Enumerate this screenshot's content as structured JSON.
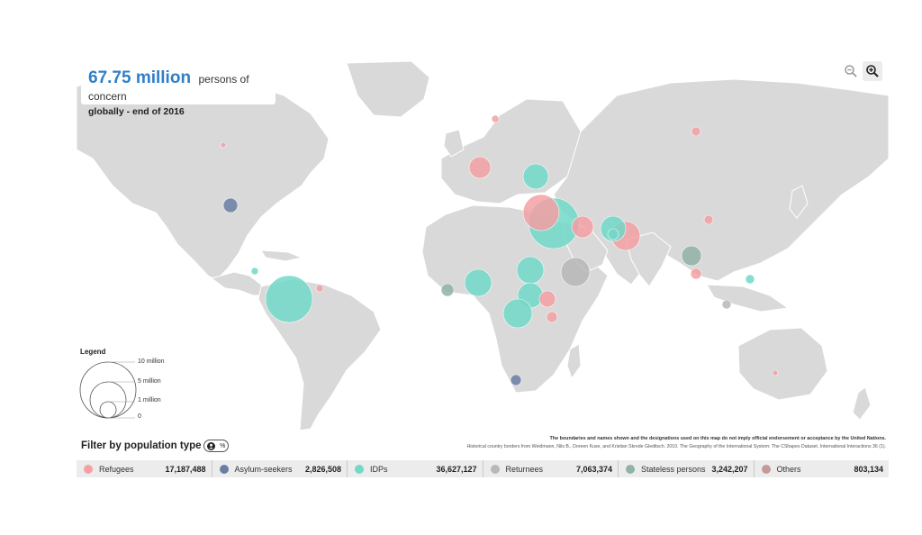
{
  "title": {
    "big": "67.75 million",
    "rest": "persons of concern",
    "sub": "globally - end of 2016"
  },
  "zoom": {
    "out_icon": "zoom-out-icon",
    "in_icon": "zoom-in-icon"
  },
  "legend": {
    "title": "Legend",
    "ticks": [
      "10 million",
      "5 million",
      "1 million",
      "0"
    ]
  },
  "disclaimer": "The boundaries and names shown and the designations used on this map do not imply official endorsement or acceptance by the United Nations.",
  "credit": "Historical country borders from Weidmann, Nils B., Doreen Kuse, and Kristian Skrede Gleditsch. 2010. The Geography of the International System: The CShapes Dataset. International Interactions 36 (1).",
  "filter": {
    "title": "Filter by population type",
    "toggle_icon": "person-icon",
    "toggle_pct": "%",
    "items": [
      {
        "label": "Refugees",
        "value": "17,187,488",
        "color": "#f4a0a4"
      },
      {
        "label": "Asylum-seekers",
        "value": "2,826,508",
        "color": "#6b7fa3"
      },
      {
        "label": "IDPs",
        "value": "36,627,127",
        "color": "#72d9c9"
      },
      {
        "label": "Returnees",
        "value": "7,063,374",
        "color": "#b8b8b8"
      },
      {
        "label": "Stateless persons",
        "value": "3,242,207",
        "color": "#92b2a6"
      },
      {
        "label": "Others",
        "value": "803,134",
        "color": "#c49a9a"
      }
    ]
  }
}
